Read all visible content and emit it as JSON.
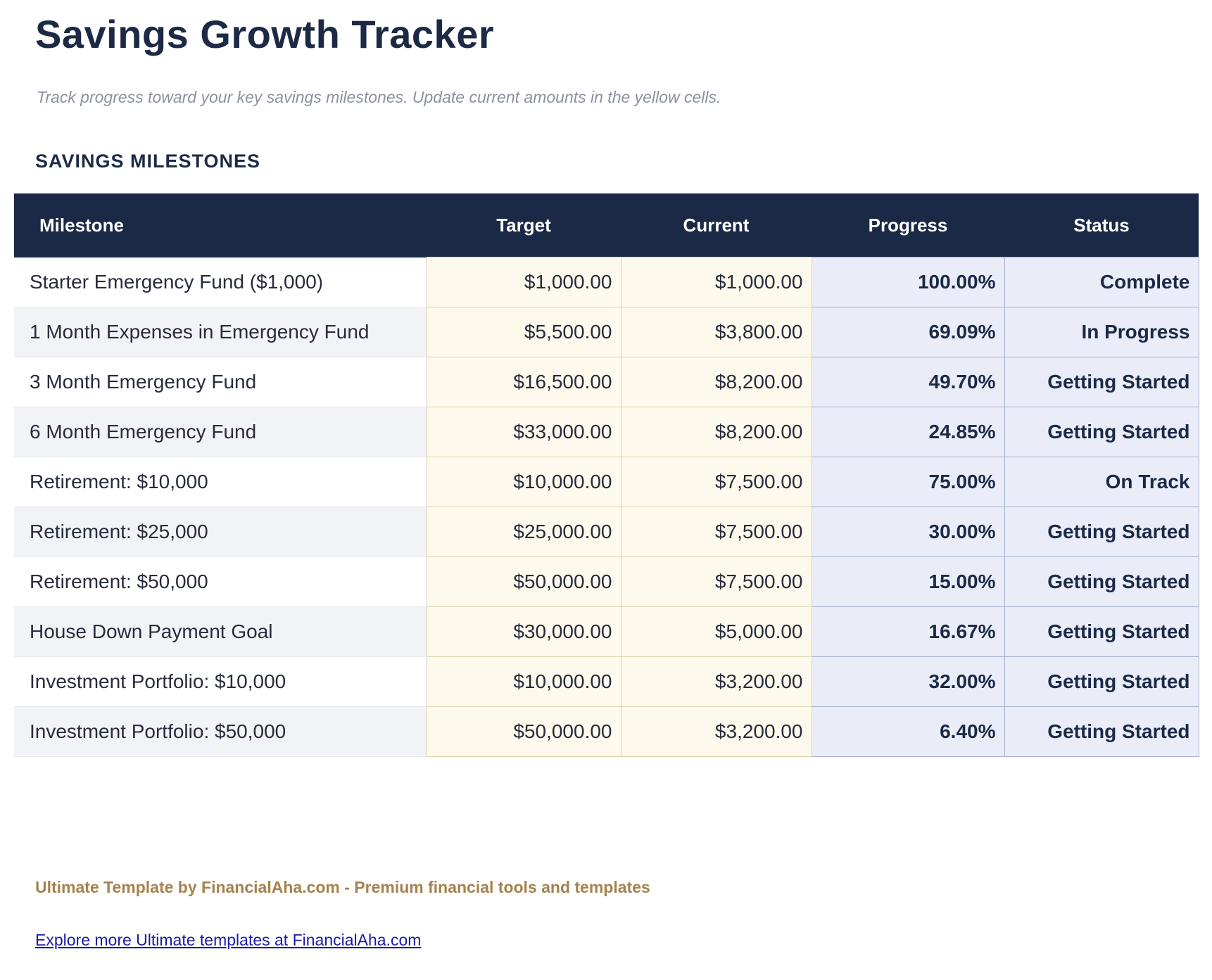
{
  "page": {
    "title": "Savings Growth Tracker",
    "subtitle": "Track progress toward your key savings milestones. Update current amounts in the yellow cells.",
    "section_title": "SAVINGS MILESTONES"
  },
  "table": {
    "columns": [
      "Milestone",
      "Target",
      "Current",
      "Progress",
      "Status"
    ],
    "rows": [
      {
        "milestone": "Starter Emergency Fund ($1,000)",
        "target": "$1,000.00",
        "current": "$1,000.00",
        "progress": "100.00%",
        "status": "Complete"
      },
      {
        "milestone": "1 Month Expenses in Emergency Fund",
        "target": "$5,500.00",
        "current": "$3,800.00",
        "progress": "69.09%",
        "status": "In Progress"
      },
      {
        "milestone": "3 Month Emergency Fund",
        "target": "$16,500.00",
        "current": "$8,200.00",
        "progress": "49.70%",
        "status": "Getting Started"
      },
      {
        "milestone": "6 Month Emergency Fund",
        "target": "$33,000.00",
        "current": "$8,200.00",
        "progress": "24.85%",
        "status": "Getting Started"
      },
      {
        "milestone": "Retirement: $10,000",
        "target": "$10,000.00",
        "current": "$7,500.00",
        "progress": "75.00%",
        "status": "On Track"
      },
      {
        "milestone": "Retirement: $25,000",
        "target": "$25,000.00",
        "current": "$7,500.00",
        "progress": "30.00%",
        "status": "Getting Started"
      },
      {
        "milestone": "Retirement: $50,000",
        "target": "$50,000.00",
        "current": "$7,500.00",
        "progress": "15.00%",
        "status": "Getting Started"
      },
      {
        "milestone": "House Down Payment Goal",
        "target": "$30,000.00",
        "current": "$5,000.00",
        "progress": "16.67%",
        "status": "Getting Started"
      },
      {
        "milestone": "Investment Portfolio: $10,000",
        "target": "$10,000.00",
        "current": "$3,200.00",
        "progress": "32.00%",
        "status": "Getting Started"
      },
      {
        "milestone": "Investment Portfolio: $50,000",
        "target": "$50,000.00",
        "current": "$3,200.00",
        "progress": "6.40%",
        "status": "Getting Started"
      }
    ]
  },
  "footer": {
    "credit": "Ultimate Template by FinancialAha.com - Premium financial tools and templates",
    "link": "Explore more Ultimate templates at FinancialAha.com"
  },
  "colors": {
    "header_bg": "#1a2945",
    "accent_navy": "#1d2a46",
    "editable_cell_bg": "#fdf9ec",
    "editable_cell_border": "#ddd3ab",
    "computed_cell_bg": "#eaedf7",
    "computed_cell_border": "#a6b0ca",
    "alt_row_bg": "#f2f3f6",
    "subtitle_gray": "#8b919e",
    "footer_brown": "#a5824e",
    "link_blue": "#1b1aa7"
  }
}
